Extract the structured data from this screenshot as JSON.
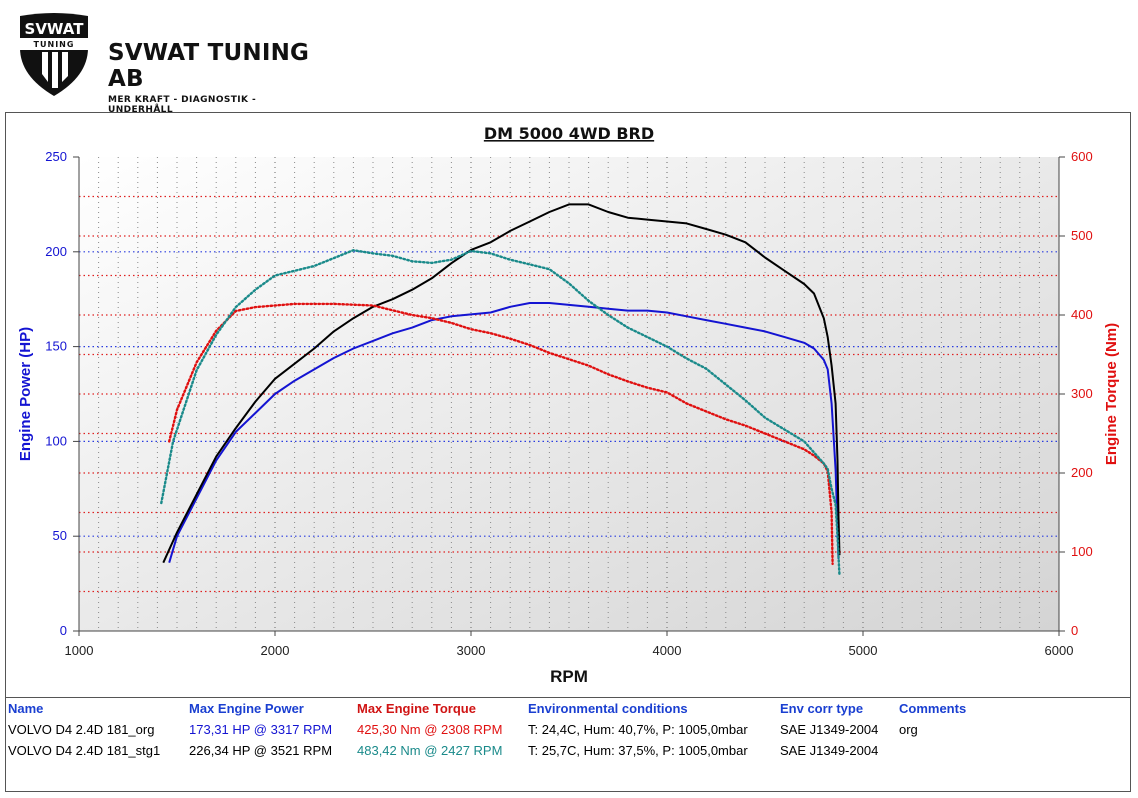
{
  "header": {
    "logo_mark": "SVWAT",
    "logo_mark_sub": "TUNING",
    "brand": "SVWAT TUNING AB",
    "tagline": "MER KRAFT - DIAGNOSTIK - UNDERHÅLL"
  },
  "chart_data": {
    "type": "line",
    "title": "DM 5000 4WD BRD",
    "xlabel": "RPM",
    "ylabel_left": "Engine Power (HP)",
    "ylabel_right": "Engine Torque (Nm)",
    "xlim": [
      1000,
      6000
    ],
    "ylim_left": [
      0,
      250
    ],
    "ylim_right": [
      0,
      600
    ],
    "x_ticks": [
      1000,
      2000,
      3000,
      4000,
      5000,
      6000
    ],
    "y_ticks_left": [
      0,
      50,
      100,
      150,
      200,
      250
    ],
    "y_ticks_right": [
      0,
      100,
      200,
      300,
      400,
      500,
      600
    ],
    "grid": true,
    "series": [
      {
        "axis": "left",
        "color": "#1414d2",
        "dash": false,
        "x": [
          1460,
          1500,
          1600,
          1700,
          1800,
          1900,
          2000,
          2100,
          2200,
          2300,
          2400,
          2500,
          2600,
          2700,
          2800,
          2900,
          3000,
          3100,
          3200,
          3300,
          3400,
          3500,
          3600,
          3700,
          3800,
          3900,
          4000,
          4100,
          4200,
          4300,
          4400,
          4500,
          4600,
          4700,
          4750,
          4800,
          4820,
          4840,
          4860,
          4870,
          4875
        ],
        "y": [
          36,
          50,
          70,
          90,
          105,
          115,
          125,
          132,
          138,
          144,
          149,
          153,
          157,
          160,
          164,
          166,
          167,
          168,
          171,
          173,
          173,
          172,
          171,
          170,
          169,
          169,
          168,
          166,
          164,
          162,
          160,
          158,
          155,
          152,
          149,
          143,
          138,
          120,
          85,
          55,
          38
        ]
      },
      {
        "axis": "left",
        "color": "#000000",
        "dash": false,
        "x": [
          1430,
          1500,
          1600,
          1700,
          1800,
          1900,
          2000,
          2100,
          2200,
          2300,
          2400,
          2500,
          2600,
          2700,
          2800,
          2900,
          3000,
          3100,
          3200,
          3300,
          3400,
          3500,
          3600,
          3700,
          3800,
          3900,
          4000,
          4100,
          4200,
          4300,
          4400,
          4500,
          4600,
          4700,
          4750,
          4800,
          4820,
          4840,
          4860,
          4870,
          4875,
          4880
        ],
        "y": [
          36,
          52,
          72,
          92,
          107,
          121,
          133,
          141,
          149,
          158,
          165,
          171,
          175,
          180,
          186,
          194,
          201,
          205,
          211,
          216,
          221,
          225,
          225,
          221,
          218,
          217,
          216,
          215,
          212,
          209,
          205,
          197,
          190,
          183,
          178,
          165,
          155,
          140,
          120,
          90,
          60,
          40
        ]
      },
      {
        "axis": "right",
        "color": "#e01010",
        "dash": true,
        "x": [
          1460,
          1500,
          1600,
          1700,
          1800,
          1900,
          2000,
          2100,
          2200,
          2300,
          2400,
          2500,
          2600,
          2700,
          2800,
          2900,
          3000,
          3100,
          3200,
          3300,
          3400,
          3500,
          3600,
          3700,
          3800,
          3900,
          4000,
          4100,
          4200,
          4300,
          4400,
          4500,
          4600,
          4700,
          4750,
          4800,
          4820,
          4840,
          4845
        ],
        "y": [
          240,
          280,
          340,
          380,
          405,
          410,
          412,
          414,
          414,
          414,
          413,
          412,
          406,
          400,
          396,
          390,
          382,
          377,
          370,
          362,
          352,
          344,
          336,
          325,
          316,
          308,
          302,
          288,
          278,
          268,
          260,
          250,
          240,
          230,
          222,
          212,
          202,
          150,
          85
        ]
      },
      {
        "axis": "right",
        "color": "#1a8a8a",
        "dash": true,
        "x": [
          1420,
          1480,
          1600,
          1700,
          1800,
          1900,
          2000,
          2100,
          2200,
          2300,
          2400,
          2500,
          2600,
          2700,
          2800,
          2900,
          3000,
          3100,
          3200,
          3300,
          3400,
          3500,
          3600,
          3700,
          3800,
          3900,
          4000,
          4100,
          4200,
          4300,
          4400,
          4500,
          4600,
          4700,
          4750,
          4800,
          4820,
          4840,
          4860,
          4870,
          4880
        ],
        "y": [
          162,
          240,
          330,
          375,
          410,
          432,
          450,
          456,
          462,
          472,
          482,
          478,
          475,
          468,
          466,
          470,
          481,
          478,
          470,
          464,
          458,
          440,
          418,
          400,
          384,
          372,
          360,
          345,
          332,
          312,
          292,
          270,
          255,
          240,
          226,
          212,
          205,
          180,
          160,
          120,
          70
        ]
      }
    ]
  },
  "results": {
    "headers": {
      "name": "Name",
      "power": "Max Engine Power",
      "torque": "Max Engine Torque",
      "env": "Environmental conditions",
      "corr": "Env corr type",
      "comments": "Comments"
    },
    "header_colors": {
      "default": "#1a3fd1",
      "torque": "#d01414"
    },
    "rows": [
      {
        "name": "VOLVO D4 2.4D 181_org",
        "power": "173,31 HP @ 3317 RPM",
        "torque": "425,30 Nm @ 2308 RPM",
        "env": "T: 24,4C, Hum: 40,7%, P: 1005,0mbar",
        "corr": "SAE J1349-2004",
        "comments": "org",
        "power_color": "#1414d2",
        "torque_color": "#e01010"
      },
      {
        "name": "VOLVO D4 2.4D 181_stg1",
        "power": "226,34 HP @ 3521 RPM",
        "torque": "483,42 Nm @ 2427 RPM",
        "env": "T: 25,7C, Hum: 37,5%, P: 1005,0mbar",
        "corr": "SAE J1349-2004",
        "comments": "",
        "power_color": "#000000",
        "torque_color": "#1a8a8a"
      }
    ]
  }
}
